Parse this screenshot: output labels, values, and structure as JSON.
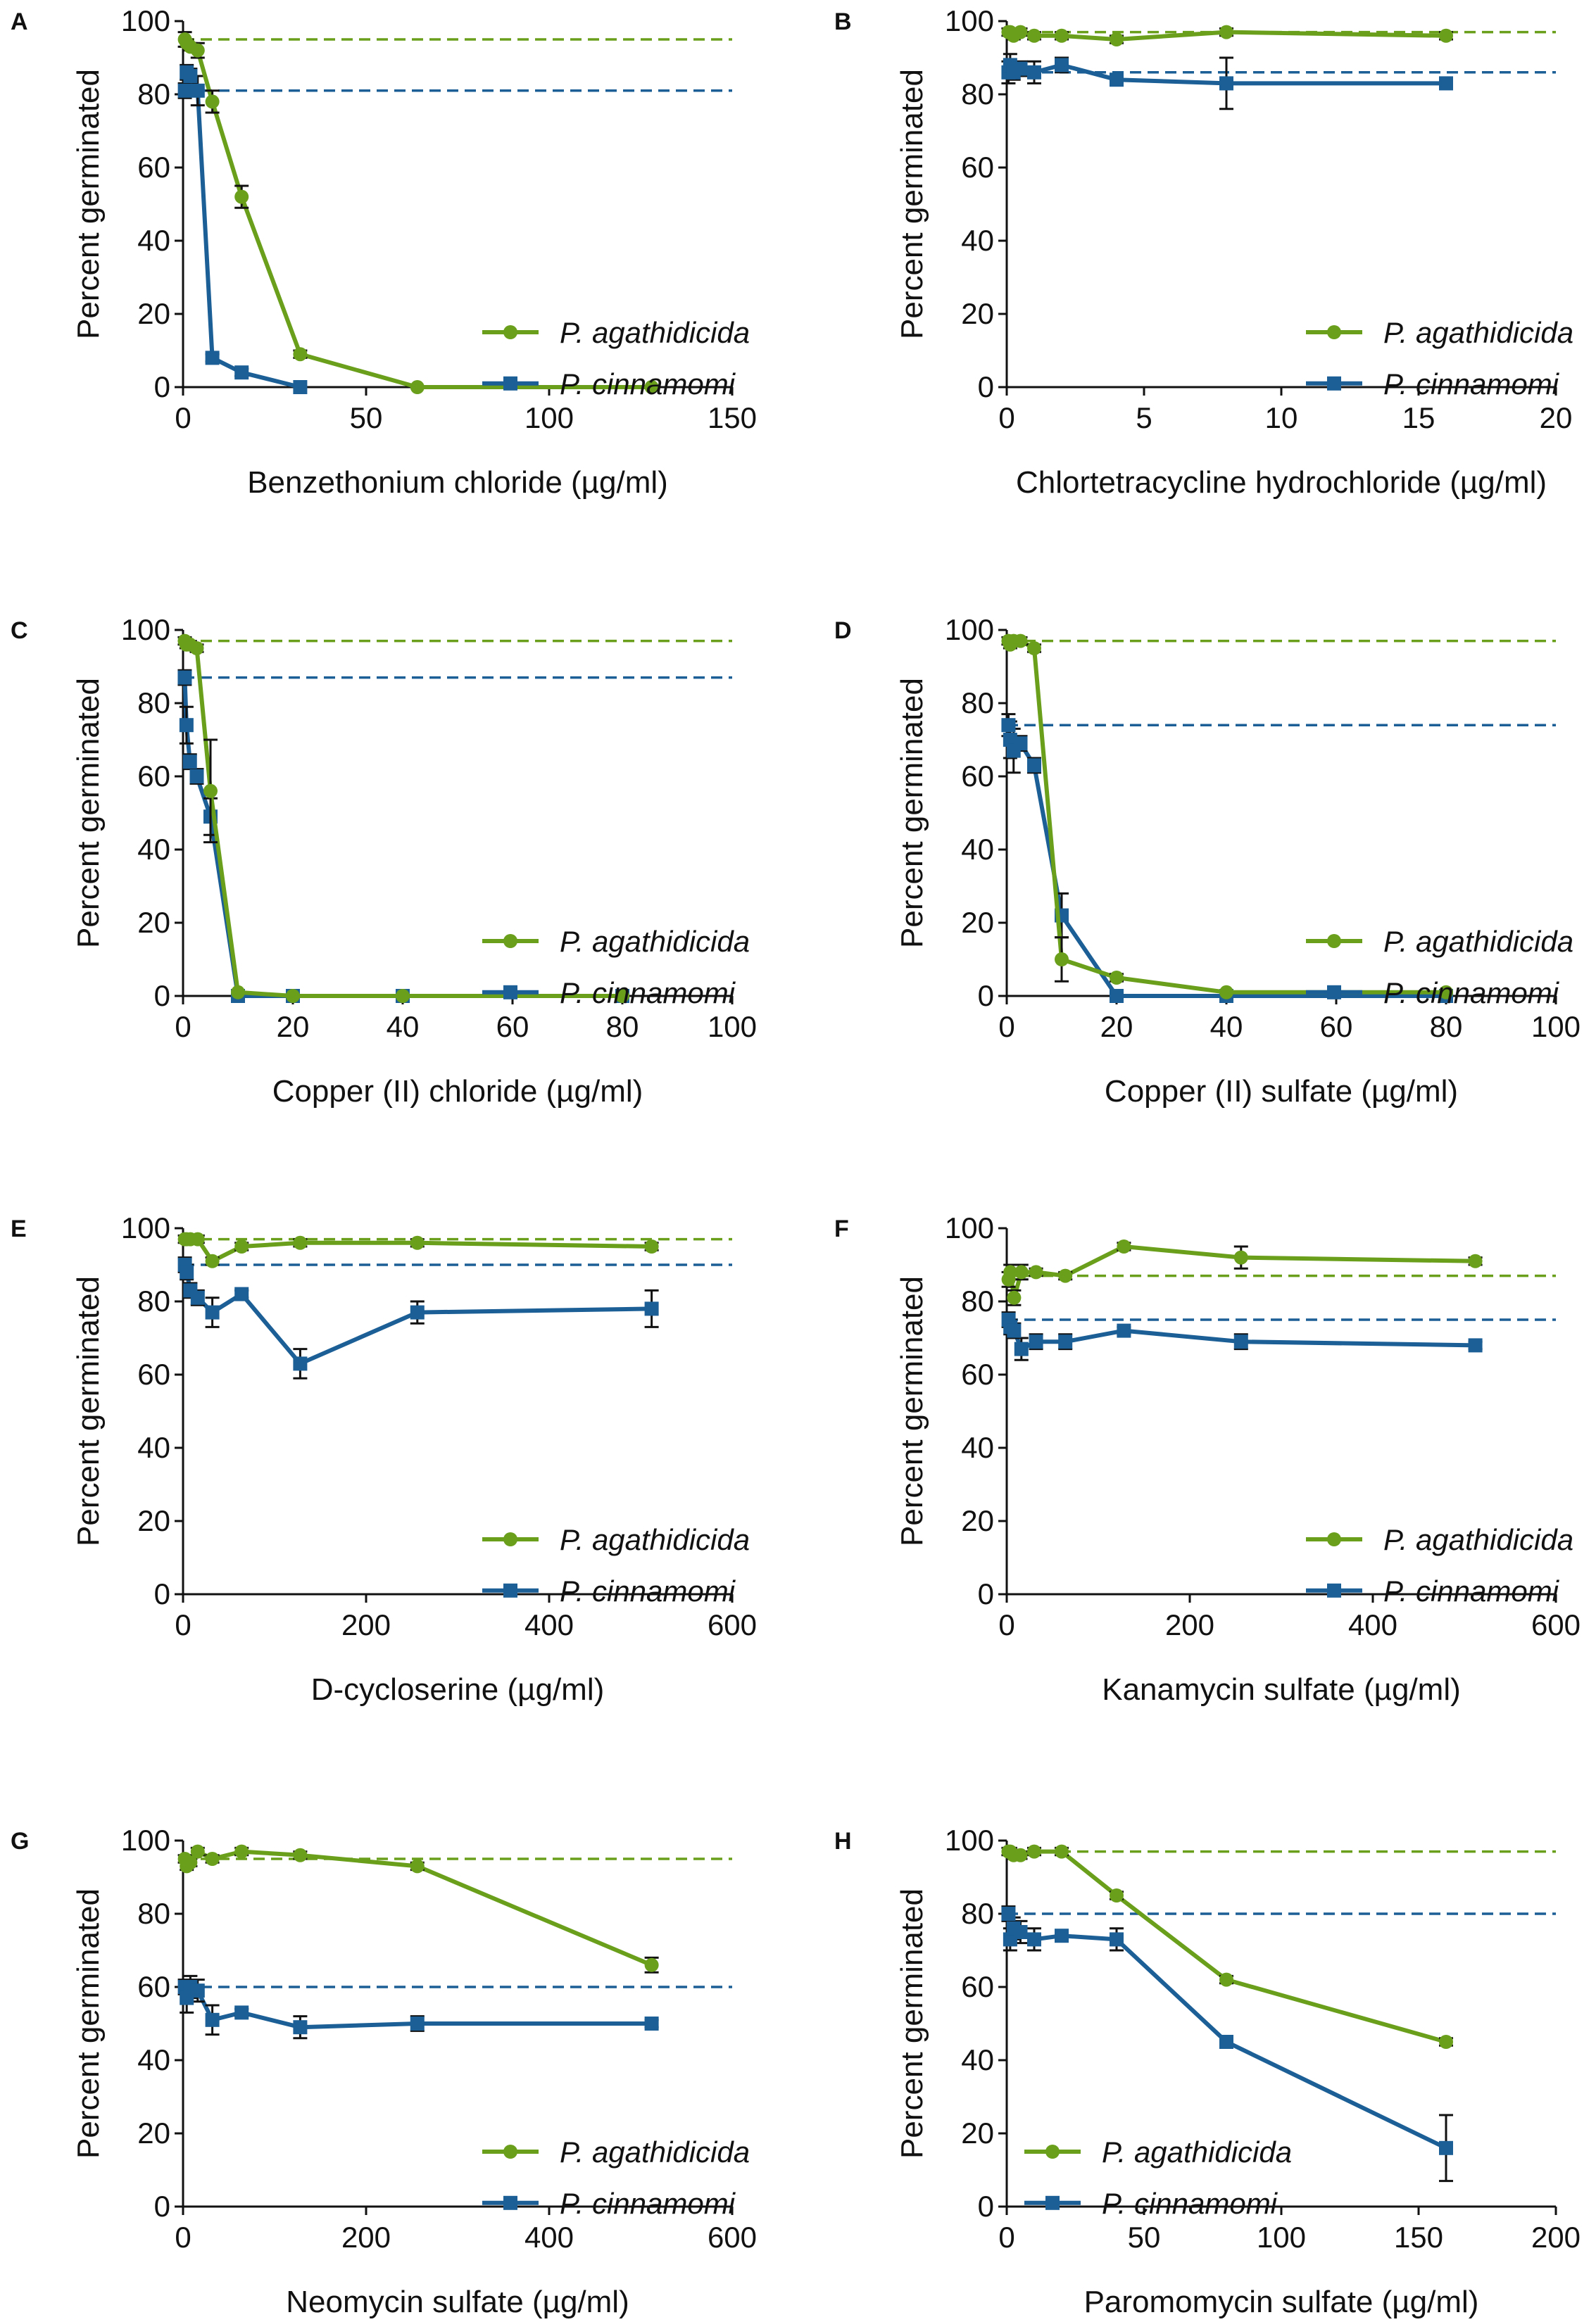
{
  "colors": {
    "agathidicida": "#6a9f1c",
    "cinnamomi": "#1b5f96",
    "axis": "#111111",
    "error_bar": "#111111"
  },
  "chart_data": [
    {
      "panel": "A",
      "type": "line",
      "xlabel": "Benzethonium chloride (µg/ml)",
      "ylabel": "Percent germinated",
      "xlim": [
        0,
        150
      ],
      "xticks": [
        0,
        50,
        100,
        150
      ],
      "ylim": [
        0,
        100
      ],
      "yticks": [
        0,
        20,
        40,
        60,
        80,
        100
      ],
      "legend_position": "lower-right",
      "series": [
        {
          "name": "P. agathidicida",
          "marker": "circle",
          "baseline": 95,
          "x": [
            0.5,
            1,
            2,
            4,
            8,
            16,
            32,
            64,
            128
          ],
          "y": [
            95,
            94,
            93,
            92,
            78,
            52,
            9,
            0,
            0
          ],
          "err": [
            2,
            1,
            1,
            2,
            3,
            3,
            1,
            0,
            0
          ]
        },
        {
          "name": "P. cinnamomi",
          "marker": "square",
          "baseline": 81,
          "x": [
            0.5,
            1,
            2,
            4,
            8,
            16,
            32
          ],
          "y": [
            81,
            86,
            85,
            81,
            8,
            4,
            0
          ],
          "err": [
            2,
            2,
            2,
            4,
            1,
            1,
            0
          ]
        }
      ]
    },
    {
      "panel": "B",
      "type": "line",
      "xlabel": "Chlortetracycline hydrochloride (µg/ml)",
      "ylabel": "Percent germinated",
      "xlim": [
        0,
        20
      ],
      "xticks": [
        0,
        5,
        10,
        15,
        20
      ],
      "ylim": [
        0,
        100
      ],
      "yticks": [
        0,
        20,
        40,
        60,
        80,
        100
      ],
      "legend_position": "lower-right",
      "series": [
        {
          "name": "P. agathidicida",
          "marker": "circle",
          "baseline": 97,
          "x": [
            0.0625,
            0.125,
            0.25,
            0.5,
            1,
            2,
            4,
            8,
            16
          ],
          "y": [
            97,
            97,
            96,
            97,
            96,
            96,
            95,
            97,
            96
          ],
          "err": [
            1,
            1,
            1,
            1,
            1,
            1,
            1,
            1,
            1
          ]
        },
        {
          "name": "P. cinnamomi",
          "marker": "square",
          "baseline": 86,
          "x": [
            0.0625,
            0.125,
            0.25,
            0.5,
            1,
            2,
            4,
            8,
            16
          ],
          "y": [
            86,
            88,
            86,
            87,
            86,
            88,
            84,
            83,
            83
          ],
          "err": [
            3,
            3,
            2,
            2,
            3,
            2,
            1,
            7,
            1
          ]
        }
      ]
    },
    {
      "panel": "C",
      "type": "line",
      "xlabel": "Copper (II) chloride (µg/ml)",
      "ylabel": "Percent germinated",
      "xlim": [
        0,
        100
      ],
      "xticks": [
        0,
        20,
        40,
        60,
        80,
        100
      ],
      "ylim": [
        0,
        100
      ],
      "yticks": [
        0,
        20,
        40,
        60,
        80,
        100
      ],
      "legend_position": "lower-right",
      "series": [
        {
          "name": "P. agathidicida",
          "marker": "circle",
          "baseline": 97,
          "x": [
            0.3125,
            0.625,
            1.25,
            2.5,
            5,
            10,
            20,
            40,
            80
          ],
          "y": [
            97,
            96,
            96,
            95,
            56,
            1,
            0,
            0,
            0
          ],
          "err": [
            1,
            1,
            1,
            1,
            14,
            0,
            0,
            0,
            0
          ]
        },
        {
          "name": "P. cinnamomi",
          "marker": "square",
          "baseline": 87,
          "x": [
            0.3125,
            0.625,
            1.25,
            2.5,
            5,
            10,
            20,
            40,
            80
          ],
          "y": [
            87,
            74,
            64,
            60,
            49,
            0,
            0,
            0,
            0
          ],
          "err": [
            2,
            5,
            2,
            2,
            5,
            0,
            0,
            0,
            0
          ]
        }
      ]
    },
    {
      "panel": "D",
      "type": "line",
      "xlabel": "Copper (II) sulfate (µg/ml)",
      "ylabel": "Percent germinated",
      "xlim": [
        0,
        100
      ],
      "xticks": [
        0,
        20,
        40,
        60,
        80,
        100
      ],
      "ylim": [
        0,
        100
      ],
      "yticks": [
        0,
        20,
        40,
        60,
        80,
        100
      ],
      "legend_position": "lower-right",
      "series": [
        {
          "name": "P. agathidicida",
          "marker": "circle",
          "baseline": 97,
          "x": [
            0.3125,
            0.625,
            1.25,
            2.5,
            5,
            10,
            20,
            40,
            80
          ],
          "y": [
            97,
            96,
            97,
            97,
            95,
            10,
            5,
            1,
            1
          ],
          "err": [
            1,
            1,
            1,
            1,
            1,
            6,
            1,
            0,
            0
          ]
        },
        {
          "name": "P. cinnamomi",
          "marker": "square",
          "baseline": 74,
          "x": [
            0.3125,
            0.625,
            1.25,
            2.5,
            5,
            10,
            20,
            40,
            80
          ],
          "y": [
            74,
            70,
            67,
            69,
            63,
            22,
            0,
            0,
            0
          ],
          "err": [
            3,
            5,
            6,
            2,
            2,
            6,
            0,
            0,
            0
          ]
        }
      ]
    },
    {
      "panel": "E",
      "type": "line",
      "xlabel": "D-cycloserine (µg/ml)",
      "ylabel": "Percent germinated",
      "xlim": [
        0,
        600
      ],
      "xticks": [
        0,
        200,
        400,
        600
      ],
      "ylim": [
        0,
        100
      ],
      "yticks": [
        0,
        20,
        40,
        60,
        80,
        100
      ],
      "legend_position": "lower-right",
      "series": [
        {
          "name": "P. agathidicida",
          "marker": "circle",
          "baseline": 97,
          "x": [
            2,
            4,
            8,
            16,
            32,
            64,
            128,
            256,
            512
          ],
          "y": [
            97,
            97,
            97,
            97,
            91,
            95,
            96,
            96,
            95
          ],
          "err": [
            1,
            1,
            1,
            1,
            1,
            1,
            1,
            1,
            1
          ]
        },
        {
          "name": "P. cinnamomi",
          "marker": "square",
          "baseline": 90,
          "x": [
            2,
            4,
            8,
            16,
            32,
            64,
            128,
            256,
            512
          ],
          "y": [
            90,
            88,
            83,
            81,
            77,
            82,
            63,
            77,
            78
          ],
          "err": [
            2,
            2,
            2,
            2,
            4,
            1,
            4,
            3,
            5
          ]
        }
      ]
    },
    {
      "panel": "F",
      "type": "line",
      "xlabel": "Kanamycin sulfate (µg/ml)",
      "ylabel": "Percent germinated",
      "xlim": [
        0,
        600
      ],
      "xticks": [
        0,
        200,
        400,
        600
      ],
      "ylim": [
        0,
        100
      ],
      "yticks": [
        0,
        20,
        40,
        60,
        80,
        100
      ],
      "legend_position": "lower-right",
      "series": [
        {
          "name": "P. agathidicida",
          "marker": "circle",
          "baseline": 87,
          "x": [
            2,
            4,
            8,
            16,
            32,
            64,
            128,
            256,
            512
          ],
          "y": [
            86,
            88,
            81,
            88,
            88,
            87,
            95,
            92,
            91
          ],
          "err": [
            2,
            2,
            2,
            2,
            1,
            1,
            1,
            3,
            1
          ]
        },
        {
          "name": "P. cinnamomi",
          "marker": "square",
          "baseline": 75,
          "x": [
            2,
            4,
            8,
            16,
            32,
            64,
            128,
            256,
            512
          ],
          "y": [
            75,
            73,
            72,
            67,
            69,
            69,
            72,
            69,
            68
          ],
          "err": [
            2,
            2,
            2,
            3,
            2,
            2,
            1,
            2,
            1
          ]
        }
      ]
    },
    {
      "panel": "G",
      "type": "line",
      "xlabel": "Neomycin sulfate (µg/ml)",
      "ylabel": "Percent germinated",
      "xlim": [
        0,
        600
      ],
      "xticks": [
        0,
        200,
        400,
        600
      ],
      "ylim": [
        0,
        100
      ],
      "yticks": [
        0,
        20,
        40,
        60,
        80,
        100
      ],
      "legend_position": "lower-right",
      "series": [
        {
          "name": "P. agathidicida",
          "marker": "circle",
          "baseline": 95,
          "x": [
            2,
            4,
            8,
            16,
            32,
            64,
            128,
            256,
            512
          ],
          "y": [
            95,
            93,
            94,
            97,
            95,
            97,
            96,
            93,
            66
          ],
          "err": [
            1,
            1,
            1,
            1,
            1,
            1,
            1,
            1,
            2
          ]
        },
        {
          "name": "P. cinnamomi",
          "marker": "square",
          "baseline": 60,
          "x": [
            2,
            4,
            8,
            16,
            32,
            64,
            128,
            256,
            512
          ],
          "y": [
            60,
            57,
            60,
            59,
            51,
            53,
            49,
            50,
            50
          ],
          "err": [
            2,
            4,
            3,
            3,
            4,
            1,
            3,
            2,
            1
          ]
        }
      ]
    },
    {
      "panel": "H",
      "type": "line",
      "xlabel": "Paromomycin sulfate (µg/ml)",
      "ylabel": "Percent germinated",
      "xlim": [
        0,
        200
      ],
      "xticks": [
        0,
        50,
        100,
        150,
        200
      ],
      "ylim": [
        0,
        100
      ],
      "yticks": [
        0,
        20,
        40,
        60,
        80,
        100
      ],
      "legend_position": "lower-left",
      "series": [
        {
          "name": "P. agathidicida",
          "marker": "circle",
          "baseline": 97,
          "x": [
            0.625,
            1.25,
            2.5,
            5,
            10,
            20,
            40,
            80,
            160
          ],
          "y": [
            97,
            97,
            96,
            96,
            97,
            97,
            85,
            62,
            45
          ],
          "err": [
            1,
            1,
            1,
            1,
            1,
            1,
            1,
            1,
            1
          ]
        },
        {
          "name": "P. cinnamomi",
          "marker": "square",
          "baseline": 80,
          "x": [
            0.625,
            1.25,
            2.5,
            5,
            10,
            20,
            40,
            80,
            160
          ],
          "y": [
            80,
            73,
            76,
            75,
            73,
            74,
            73,
            45,
            16
          ],
          "err": [
            2,
            3,
            3,
            3,
            3,
            1,
            3,
            1,
            9
          ]
        }
      ]
    }
  ]
}
